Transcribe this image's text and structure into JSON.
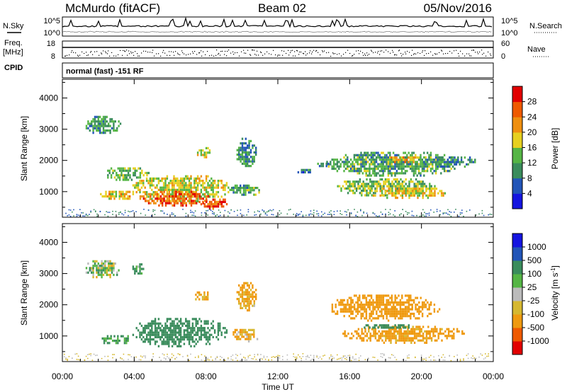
{
  "header": {
    "station": "McMurdo (fitACF)",
    "beam": "Beam 02",
    "date": "05/Nov/2016"
  },
  "aux": {
    "nsky_label": "N.Sky",
    "nsearch_label": "N.Search",
    "freq_label": "Freq.",
    "freq_unit": "[MHz]",
    "nave_label": "Nave",
    "cpid_label": "CPID",
    "cpid_value": "normal (fast) -151 RF",
    "noise_ticks_left": [
      "10^5",
      "10^0"
    ],
    "noise_ticks_right": [
      "10^5",
      "10^0"
    ],
    "freq_ticks_left": [
      "18",
      "8"
    ],
    "nave_ticks_right": [
      "60",
      "0"
    ]
  },
  "xaxis": {
    "label": "Time UT",
    "ticks": [
      "00:00",
      "04:00",
      "08:00",
      "12:00",
      "16:00",
      "20:00",
      "00:00"
    ]
  },
  "colors": {
    "power": [
      "#1515e0",
      "#2255b8",
      "#3a8c5c",
      "#55b545",
      "#e6d020",
      "#ef8f10",
      "#ef5a00",
      "#e20000"
    ],
    "velocity": [
      "#e20000",
      "#ef5a00",
      "#ef9a10",
      "#d6b830",
      "#bbbbbb",
      "#55b545",
      "#3a8c5c",
      "#2255b8",
      "#1515e0"
    ]
  },
  "chart_data": [
    {
      "type": "heatmap",
      "title": "Power",
      "ylabel": "Slant Range [km]",
      "xlabel": "",
      "xlim_hours": [
        0,
        24
      ],
      "ylim": [
        180,
        4600
      ],
      "yticks": [
        "1000",
        "2000",
        "3000",
        "4000"
      ],
      "colorbar": {
        "label": "Power [dB]",
        "ticks": [
          "4",
          "8",
          "12",
          "16",
          "20",
          "24",
          "28"
        ],
        "range": [
          0,
          32
        ]
      },
      "regions": [
        {
          "t0": 1.2,
          "t1": 3.2,
          "r0": 2850,
          "r1": 3500,
          "value": 11
        },
        {
          "t0": 2.3,
          "t1": 4.8,
          "r0": 1350,
          "r1": 1850,
          "value": 13
        },
        {
          "t0": 2.0,
          "t1": 4.2,
          "r0": 750,
          "r1": 1100,
          "value": 20
        },
        {
          "t0": 3.8,
          "t1": 9.5,
          "r0": 700,
          "r1": 1600,
          "value": 17
        },
        {
          "t0": 4.2,
          "t1": 8.2,
          "r0": 550,
          "r1": 1100,
          "value": 25
        },
        {
          "t0": 7.5,
          "t1": 9.2,
          "r0": 480,
          "r1": 850,
          "value": 27
        },
        {
          "t0": 7.4,
          "t1": 8.2,
          "r0": 2100,
          "r1": 2500,
          "value": 18
        },
        {
          "t0": 9.3,
          "t1": 11.1,
          "r0": 900,
          "r1": 1300,
          "value": 12
        },
        {
          "t0": 9.6,
          "t1": 10.8,
          "r0": 1800,
          "r1": 2800,
          "value": 10
        },
        {
          "t0": 13.0,
          "t1": 14.0,
          "r0": 1600,
          "r1": 1800,
          "value": 8
        },
        {
          "t0": 14.6,
          "t1": 22.2,
          "r0": 1500,
          "r1": 2350,
          "value": 12
        },
        {
          "t0": 15.2,
          "t1": 20.8,
          "r0": 850,
          "r1": 1500,
          "value": 15
        },
        {
          "t0": 17.0,
          "t1": 21.5,
          "r0": 800,
          "r1": 1200,
          "value": 19
        },
        {
          "t0": 18.0,
          "t1": 20.0,
          "r0": 1950,
          "r1": 2200,
          "value": 20
        },
        {
          "t0": 14.0,
          "t1": 14.8,
          "r0": 1800,
          "r1": 2000,
          "value": 9
        },
        {
          "t0": 20.0,
          "t1": 23.0,
          "r0": 1800,
          "r1": 2200,
          "value": 9
        }
      ]
    },
    {
      "type": "heatmap",
      "title": "Velocity",
      "ylabel": "Slant Range [km]",
      "xlabel": "Time UT",
      "xlim_hours": [
        0,
        24
      ],
      "ylim": [
        180,
        4600
      ],
      "yticks": [
        "1000",
        "2000",
        "3000",
        "4000"
      ],
      "colorbar": {
        "label": "Velocity [m s^-1]",
        "ticks": [
          "-1000",
          "-500",
          "-100",
          "-25",
          "25",
          "100",
          "500",
          "1000"
        ],
        "range": [
          -2000,
          2000
        ]
      },
      "regions": [
        {
          "t0": 1.2,
          "t1": 3.2,
          "r0": 2850,
          "r1": 3500,
          "value": 10
        },
        {
          "t0": 2.0,
          "t1": 3.8,
          "r0": 750,
          "r1": 1100,
          "value": 150
        },
        {
          "t0": 3.8,
          "t1": 9.2,
          "r0": 650,
          "r1": 1650,
          "value": 300
        },
        {
          "t0": 9.2,
          "t1": 11.0,
          "r0": 850,
          "r1": 1300,
          "value": -120
        },
        {
          "t0": 3.8,
          "t1": 4.5,
          "r0": 2900,
          "r1": 3400,
          "value": 150
        },
        {
          "t0": 7.2,
          "t1": 8.2,
          "r0": 2150,
          "r1": 2500,
          "value": -150
        },
        {
          "t0": 9.6,
          "t1": 10.8,
          "r0": 1800,
          "r1": 2800,
          "value": -150
        },
        {
          "t0": 14.8,
          "t1": 21.0,
          "r0": 1500,
          "r1": 2400,
          "value": -300
        },
        {
          "t0": 15.5,
          "t1": 22.5,
          "r0": 800,
          "r1": 1400,
          "value": -200
        },
        {
          "t0": 16.5,
          "t1": 19.5,
          "r0": 1250,
          "r1": 1450,
          "value": 300
        }
      ]
    }
  ]
}
